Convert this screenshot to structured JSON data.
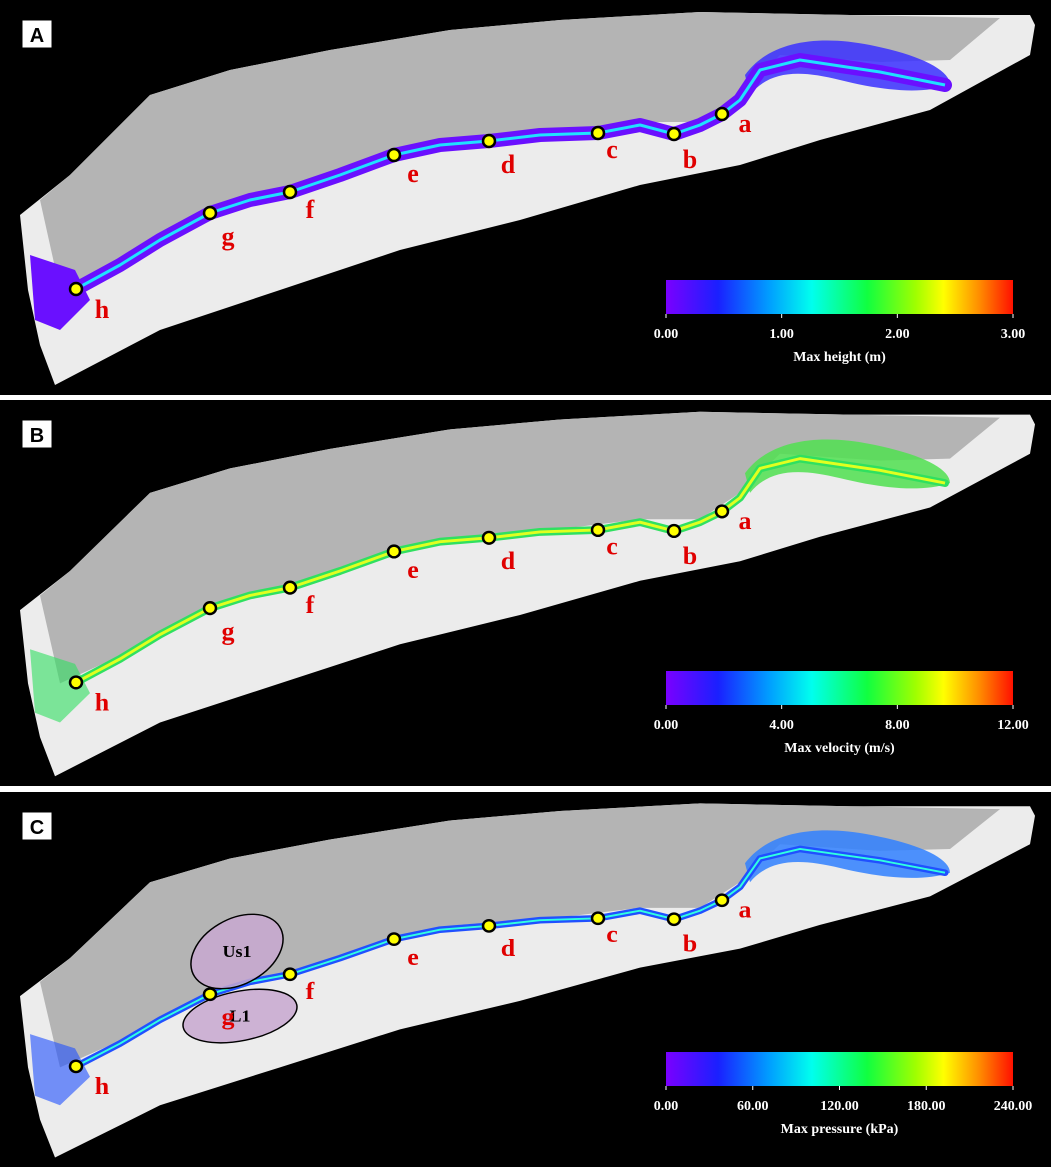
{
  "panels": [
    {
      "label": "A",
      "points": [
        "a",
        "b",
        "c",
        "d",
        "e",
        "f",
        "g",
        "h"
      ],
      "colorbar": {
        "label": "Max height (m)",
        "ticks": [
          {
            "value": 0,
            "label": "0.00"
          },
          {
            "value": 1,
            "label": "1.00"
          },
          {
            "value": 2,
            "label": "2.00"
          },
          {
            "value": 3,
            "label": "3.00"
          }
        ]
      }
    },
    {
      "label": "B",
      "points": [
        "a",
        "b",
        "c",
        "d",
        "e",
        "f",
        "g",
        "h"
      ],
      "colorbar": {
        "label": "Max velocity (m/s)",
        "ticks": [
          {
            "value": 0,
            "label": "0.00"
          },
          {
            "value": 4,
            "label": "4.00"
          },
          {
            "value": 8,
            "label": "8.00"
          },
          {
            "value": 12,
            "label": "12.00"
          }
        ]
      }
    },
    {
      "label": "C",
      "points": [
        "a",
        "b",
        "c",
        "d",
        "e",
        "f",
        "g",
        "h"
      ],
      "zones": [
        "Us1",
        "L1"
      ],
      "colorbar": {
        "label": "Max pressure (kPa)",
        "ticks": [
          {
            "value": 0,
            "label": "0.00"
          },
          {
            "value": 60,
            "label": "60.00"
          },
          {
            "value": 120,
            "label": "120.00"
          },
          {
            "value": 180,
            "label": "180.00"
          },
          {
            "value": 240,
            "label": "240.00"
          }
        ]
      }
    }
  ]
}
